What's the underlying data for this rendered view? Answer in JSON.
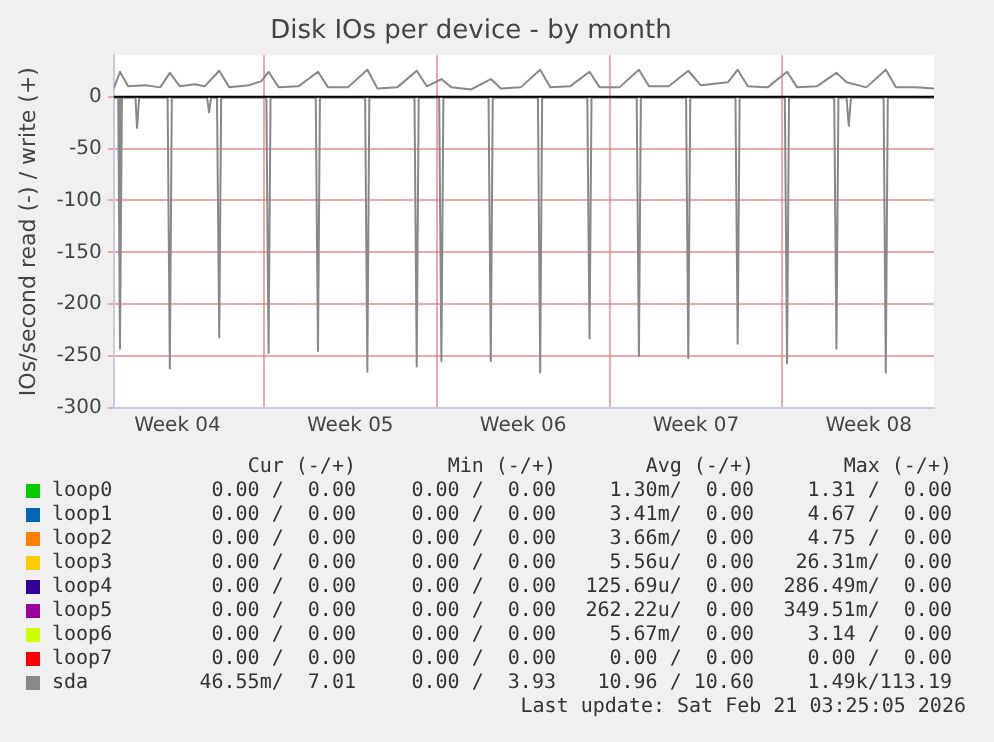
{
  "chart_data": {
    "type": "line",
    "title": "Disk IOs per device - by month",
    "ylabel": "IOs/second read (-) / write (+)",
    "xlim": [
      "2026-01-18T22:05",
      "2026-02-21T03:25"
    ],
    "xticks": [
      {
        "value": "2026-01-21T12:00",
        "label": "Week 04"
      },
      {
        "value": "2026-01-25",
        "label": null
      },
      {
        "value": "2026-01-28T12:00",
        "label": "Week 05"
      },
      {
        "value": "2026-02-01",
        "label": null
      },
      {
        "value": "2026-02-04T12:00",
        "label": "Week 06"
      },
      {
        "value": "2026-02-08",
        "label": null
      },
      {
        "value": "2026-02-11T12:00",
        "label": "Week 07"
      },
      {
        "value": "2026-02-15",
        "label": null
      },
      {
        "value": "2026-02-18T12:00",
        "label": "Week 08"
      }
    ],
    "ylim": [
      -300,
      40
    ],
    "yticks": [
      -300,
      -250,
      -200,
      -150,
      -100,
      -50,
      0
    ],
    "grid": true,
    "legend": "bottom",
    "marker": "none",
    "line_style": "solid",
    "ref_lines": [
      {
        "axis": "y",
        "value": 0,
        "color": "#000000"
      }
    ],
    "series": [
      {
        "name": "loop0",
        "color": "#00cc00"
      },
      {
        "name": "loop1",
        "color": "#0066b3"
      },
      {
        "name": "loop2",
        "color": "#ff8000"
      },
      {
        "name": "loop3",
        "color": "#ffcc00"
      },
      {
        "name": "loop4",
        "color": "#330099"
      },
      {
        "name": "loop5",
        "color": "#990099"
      },
      {
        "name": "loop6",
        "color": "#ccff00"
      },
      {
        "name": "loop7",
        "color": "#ff0000"
      },
      {
        "name": "sda",
        "color": "#888888",
        "x": [
          "2026-01-18T22:05",
          "2026-01-19T02:24",
          "2026-01-19T04:05",
          "2026-01-19T06:00",
          "2026-01-19T19:12",
          "2026-01-19T20:38",
          "2026-01-19T22:48",
          "2026-01-21T02:24",
          "2026-01-21T04:34",
          "2026-01-21T06:29",
          "2026-01-22T16:48",
          "2026-01-22T18:43",
          "2026-01-22T20:38",
          "2026-01-23T02:24",
          "2026-01-23T04:34",
          "2026-01-23T06:29",
          "2026-01-25T02:24",
          "2026-01-25T04:34",
          "2026-01-25T06:29",
          "2026-01-27T02:24",
          "2026-01-27T04:34",
          "2026-01-27T06:29",
          "2026-01-29T02:24",
          "2026-01-29T04:34",
          "2026-01-29T06:29",
          "2026-01-31T02:24",
          "2026-01-31T04:34",
          "2026-01-31T06:29",
          "2026-02-01T02:24",
          "2026-02-01T04:34",
          "2026-02-01T06:29",
          "2026-02-03T02:24",
          "2026-02-03T04:34",
          "2026-02-03T06:29",
          "2026-02-05T02:24",
          "2026-02-05T04:34",
          "2026-02-05T06:29",
          "2026-02-07T02:24",
          "2026-02-07T04:34",
          "2026-02-07T06:29",
          "2026-02-09T02:24",
          "2026-02-09T04:34",
          "2026-02-09T06:29",
          "2026-02-11T02:24",
          "2026-02-11T04:34",
          "2026-02-11T06:29",
          "2026-02-13T02:24",
          "2026-02-13T04:34",
          "2026-02-13T06:29",
          "2026-02-15T02:24",
          "2026-02-15T04:34",
          "2026-02-15T06:29",
          "2026-02-17T02:24",
          "2026-02-17T04:34",
          "2026-02-17T06:29",
          "2026-02-17T14:24",
          "2026-02-17T16:34",
          "2026-02-17T18:43",
          "2026-02-19T02:24",
          "2026-02-19T04:34",
          "2026-02-19T06:29",
          "2026-02-21T03:25"
        ],
        "values": [
          -1,
          -1,
          -243,
          -1,
          -1,
          -30,
          -1,
          -1,
          -262,
          -1,
          -1,
          -15,
          -1,
          -1,
          -232,
          -1,
          -1,
          -247,
          -1,
          -1,
          -245,
          -1,
          -1,
          -265,
          -1,
          -1,
          -260,
          -1,
          -1,
          -255,
          -1,
          -1,
          -255,
          -1,
          -1,
          -266,
          -1,
          -1,
          -233,
          -1,
          -1,
          -250,
          -1,
          -1,
          -252,
          -1,
          -1,
          -238,
          -1,
          -1,
          -257,
          -1,
          -1,
          -243,
          -1,
          -1,
          -28,
          -1,
          -1,
          -266,
          -1,
          -1
        ]
      },
      {
        "color": "#888888",
        "x": [
          "2026-01-18T22:05",
          "2026-01-19T04:05",
          "2026-01-19T12:00",
          "2026-01-20T04:48",
          "2026-01-20T19:12",
          "2026-01-21T04:34",
          "2026-01-21T14:24",
          "2026-01-22T04:48",
          "2026-01-22T14:24",
          "2026-01-23T04:34",
          "2026-01-23T14:24",
          "2026-01-24T09:36",
          "2026-01-24T21:36",
          "2026-01-25T04:34",
          "2026-01-25T14:24",
          "2026-01-26T09:36",
          "2026-01-27T04:34",
          "2026-01-27T14:24",
          "2026-01-28T09:36",
          "2026-01-29T04:34",
          "2026-01-29T14:24",
          "2026-01-30T09:36",
          "2026-01-31T04:34",
          "2026-01-31T14:24",
          "2026-02-01T04:34",
          "2026-02-01T14:24",
          "2026-02-02T09:36",
          "2026-02-03T04:34",
          "2026-02-03T14:24",
          "2026-02-04T09:36",
          "2026-02-05T04:34",
          "2026-02-05T14:24",
          "2026-02-06T09:36",
          "2026-02-07T04:34",
          "2026-02-07T14:24",
          "2026-02-08T09:36",
          "2026-02-09T04:34",
          "2026-02-09T14:24",
          "2026-02-10T09:36",
          "2026-02-11T04:34",
          "2026-02-11T16:48",
          "2026-02-12T19:12",
          "2026-02-13T04:34",
          "2026-02-13T14:24",
          "2026-02-14T09:36",
          "2026-02-15T04:34",
          "2026-02-15T14:24",
          "2026-02-16T09:36",
          "2026-02-17T04:34",
          "2026-02-17T14:24",
          "2026-02-18T09:36",
          "2026-02-19T04:34",
          "2026-02-19T14:24",
          "2026-02-20T09:36",
          "2026-02-21T03:25"
        ],
        "values": [
          8,
          24,
          10,
          11,
          9,
          23,
          10,
          12,
          10,
          25,
          9,
          11,
          15,
          24,
          9,
          10,
          24,
          9,
          9,
          26,
          8,
          9,
          25,
          10,
          17,
          9,
          7,
          17,
          8,
          9,
          26,
          9,
          10,
          24,
          9,
          9,
          26,
          10,
          10,
          25,
          11,
          14,
          26,
          10,
          9,
          24,
          9,
          10,
          23,
          14,
          9,
          26,
          9,
          9,
          8
        ]
      }
    ],
    "annotations": [
      "Cur (-/+)",
      "Min (-/+)",
      "Avg (-/+)",
      "Max (-/+)",
      "0.00 /  0.00",
      "0.00 /  0.00",
      "1.30m/  0.00",
      "1.31 /  0.00",
      "0.00 /  0.00",
      "0.00 /  0.00",
      "3.41m/  0.00",
      "4.67 /  0.00",
      "0.00 /  0.00",
      "0.00 /  0.00",
      "3.66m/  0.00",
      "4.75 /  0.00",
      "0.00 /  0.00",
      "0.00 /  0.00",
      "5.56u/  0.00",
      "26.31m/  0.00",
      "0.00 /  0.00",
      "0.00 /  0.00",
      "125.69u/  0.00",
      "286.49m/  0.00",
      "0.00 /  0.00",
      "0.00 /  0.00",
      "262.22u/  0.00",
      "349.51m/  0.00",
      "0.00 /  0.00",
      "0.00 /  0.00",
      "5.67m/  0.00",
      "3.14 /  0.00",
      "0.00 /  0.00",
      "0.00 /  0.00",
      "0.00 /  0.00",
      "0.00 /  0.00",
      "46.55m/  7.01",
      "0.00 /  3.93",
      "10.96 / 10.60",
      "1.49k/113.19",
      "Last update: Sat Feb 21 03:25:05 2026"
    ]
  }
}
